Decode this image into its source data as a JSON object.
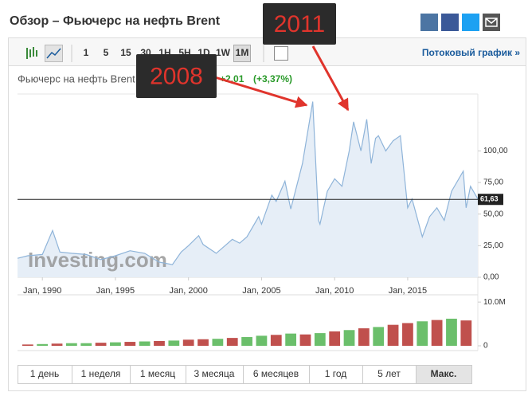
{
  "header": {
    "title": "Обзор – Фьючерс на нефть Brent"
  },
  "toolbar": {
    "intervals": [
      "1",
      "5",
      "15",
      "30",
      "1H",
      "5H",
      "1D",
      "1W",
      "1M"
    ],
    "active": 8,
    "stream_link": "Потоковый график »"
  },
  "range_buttons": {
    "labels": [
      "1 день",
      "1 неделя",
      "1 месяц",
      "3 месяца",
      "6 месяцев",
      "1 год",
      "5 лет",
      "Макс."
    ],
    "active": 7
  },
  "annotations": [
    {
      "label": "2011"
    },
    {
      "label": "2008"
    }
  ],
  "chart_data": {
    "type": "area",
    "instrument": "Фьючерс на нефть Brent",
    "change": "+2,01",
    "change_percent": "(+3,37%)",
    "watermark": "Investing.com",
    "color": "#8fb4d9",
    "fill": "#e6eef7",
    "x": [
      1988.3,
      1989,
      1990,
      1990.7,
      1991.2,
      1992,
      1993,
      1994,
      1995,
      1996,
      1997,
      1998,
      1998.9,
      1999.5,
      2000,
      2000.7,
      2001,
      2001.9,
      2002.5,
      2003,
      2003.5,
      2004,
      2004.8,
      2005,
      2005.7,
      2006,
      2006.6,
      2007,
      2007.8,
      2008.5,
      2008.9,
      2009,
      2009.5,
      2010,
      2010.5,
      2011,
      2011.3,
      2011.8,
      2012.2,
      2012.5,
      2012.8,
      2013,
      2013.5,
      2014,
      2014.5,
      2015,
      2015.3,
      2016,
      2016.5,
      2017,
      2017.5,
      2018,
      2018.8,
      2019,
      2019.3,
      2019.8
    ],
    "values": [
      15,
      17,
      18,
      37,
      20,
      19,
      18,
      14,
      17,
      21,
      19,
      12,
      10,
      20,
      25,
      33,
      26,
      19,
      25,
      30,
      27,
      32,
      48,
      42,
      65,
      60,
      76,
      54,
      90,
      139,
      45,
      42,
      68,
      78,
      72,
      100,
      123,
      100,
      125,
      90,
      110,
      112,
      100,
      108,
      112,
      55,
      62,
      32,
      48,
      55,
      45,
      68,
      84,
      55,
      72,
      62
    ],
    "xlim": [
      1988.3,
      2019.8
    ],
    "xticks": [
      {
        "value": 1990,
        "label": "Jan, 1990"
      },
      {
        "value": 1995,
        "label": "Jan, 1995"
      },
      {
        "value": 2000,
        "label": "Jan, 2000"
      },
      {
        "value": 2005,
        "label": "Jan, 2005"
      },
      {
        "value": 2010,
        "label": "Jan, 2010"
      },
      {
        "value": 2015,
        "label": "Jan, 2015"
      }
    ],
    "ylim": [
      0,
      145
    ],
    "yticks": [
      {
        "value": 0,
        "label": "0,00"
      },
      {
        "value": 25,
        "label": "25,00"
      },
      {
        "value": 50,
        "label": "50,00"
      },
      {
        "value": 75,
        "label": "75,00"
      },
      {
        "value": 100,
        "label": "100,00"
      }
    ],
    "last_value": {
      "value": 61.63,
      "label": "61,63"
    },
    "volume": {
      "x": [
        1989,
        1990,
        1991,
        1992,
        1993,
        1994,
        1995,
        1996,
        1997,
        1998,
        1999,
        2000,
        2001,
        2002,
        2003,
        2004,
        2005,
        2006,
        2007,
        2008,
        2009,
        2010,
        2011,
        2012,
        2013,
        2014,
        2015,
        2016,
        2017,
        2018,
        2019
      ],
      "values": [
        300000,
        400000,
        500000,
        600000,
        600000,
        700000,
        800000,
        900000,
        1000000,
        1100000,
        1200000,
        1400000,
        1500000,
        1600000,
        1800000,
        2000000,
        2300000,
        2500000,
        2800000,
        2600000,
        2900000,
        3300000,
        3600000,
        4000000,
        4300000,
        4800000,
        5200000,
        5600000,
        5900000,
        6200000,
        5800000
      ],
      "colors": [
        "#c0504d",
        "#6bbf6b",
        "#c0504d",
        "#6bbf6b",
        "#6bbf6b",
        "#c0504d",
        "#6bbf6b",
        "#c0504d",
        "#6bbf6b",
        "#c0504d",
        "#6bbf6b",
        "#c0504d",
        "#c0504d",
        "#6bbf6b",
        "#c0504d",
        "#6bbf6b",
        "#6bbf6b",
        "#c0504d",
        "#6bbf6b",
        "#c0504d",
        "#6bbf6b",
        "#c0504d",
        "#6bbf6b",
        "#c0504d",
        "#6bbf6b",
        "#c0504d",
        "#c0504d",
        "#6bbf6b",
        "#c0504d",
        "#6bbf6b",
        "#c0504d"
      ],
      "ylim": [
        0,
        11300000
      ],
      "yticks": [
        0,
        {
          "value": 10000000,
          "label": "10.0M"
        }
      ]
    }
  }
}
